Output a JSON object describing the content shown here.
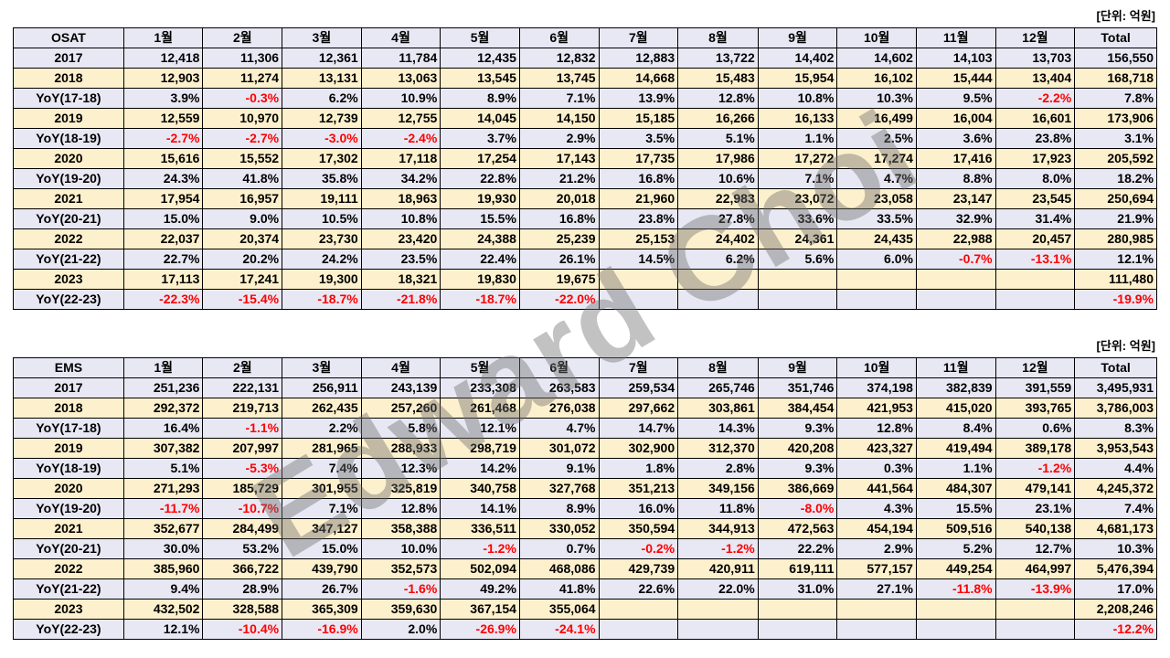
{
  "unit_label": "[단위: 억원]",
  "watermark": "Edward Choi",
  "tables": [
    {
      "header": [
        "OSAT",
        "1월",
        "2월",
        "3월",
        "4월",
        "5월",
        "6월",
        "7월",
        "8월",
        "9월",
        "10월",
        "11월",
        "12월",
        "Total"
      ],
      "rows": [
        {
          "label": "2017",
          "values": [
            "12,418",
            "11,306",
            "12,361",
            "11,784",
            "12,435",
            "12,832",
            "12,883",
            "13,722",
            "14,402",
            "14,602",
            "14,103",
            "13,703",
            "156,550"
          ]
        },
        {
          "label": "2018",
          "values": [
            "12,903",
            "11,274",
            "13,131",
            "13,063",
            "13,545",
            "13,745",
            "14,668",
            "15,483",
            "15,954",
            "16,102",
            "15,444",
            "13,404",
            "168,718"
          ]
        },
        {
          "label": "YoY(17-18)",
          "values": [
            "3.9%",
            "-0.3%",
            "6.2%",
            "10.9%",
            "8.9%",
            "7.1%",
            "13.9%",
            "12.8%",
            "10.8%",
            "10.3%",
            "9.5%",
            "-2.2%",
            "7.8%"
          ]
        },
        {
          "label": "2019",
          "values": [
            "12,559",
            "10,970",
            "12,739",
            "12,755",
            "14,045",
            "14,150",
            "15,185",
            "16,266",
            "16,133",
            "16,499",
            "16,004",
            "16,601",
            "173,906"
          ]
        },
        {
          "label": "YoY(18-19)",
          "values": [
            "-2.7%",
            "-2.7%",
            "-3.0%",
            "-2.4%",
            "3.7%",
            "2.9%",
            "3.5%",
            "5.1%",
            "1.1%",
            "2.5%",
            "3.6%",
            "23.8%",
            "3.1%"
          ]
        },
        {
          "label": "2020",
          "values": [
            "15,616",
            "15,552",
            "17,302",
            "17,118",
            "17,254",
            "17,143",
            "17,735",
            "17,986",
            "17,272",
            "17,274",
            "17,416",
            "17,923",
            "205,592"
          ]
        },
        {
          "label": "YoY(19-20)",
          "values": [
            "24.3%",
            "41.8%",
            "35.8%",
            "34.2%",
            "22.8%",
            "21.2%",
            "16.8%",
            "10.6%",
            "7.1%",
            "4.7%",
            "8.8%",
            "8.0%",
            "18.2%"
          ]
        },
        {
          "label": "2021",
          "values": [
            "17,954",
            "16,957",
            "19,111",
            "18,963",
            "19,930",
            "20,018",
            "21,960",
            "22,983",
            "23,072",
            "23,058",
            "23,147",
            "23,545",
            "250,694"
          ]
        },
        {
          "label": "YoY(20-21)",
          "values": [
            "15.0%",
            "9.0%",
            "10.5%",
            "10.8%",
            "15.5%",
            "16.8%",
            "23.8%",
            "27.8%",
            "33.6%",
            "33.5%",
            "32.9%",
            "31.4%",
            "21.9%"
          ]
        },
        {
          "label": "2022",
          "values": [
            "22,037",
            "20,374",
            "23,730",
            "23,420",
            "24,388",
            "25,239",
            "25,153",
            "24,402",
            "24,361",
            "24,435",
            "22,988",
            "20,457",
            "280,985"
          ]
        },
        {
          "label": "YoY(21-22)",
          "values": [
            "22.7%",
            "20.2%",
            "24.2%",
            "23.5%",
            "22.4%",
            "26.1%",
            "14.5%",
            "6.2%",
            "5.6%",
            "6.0%",
            "-0.7%",
            "-13.1%",
            "12.1%"
          ]
        },
        {
          "label": "2023",
          "values": [
            "17,113",
            "17,241",
            "19,300",
            "18,321",
            "19,830",
            "19,675",
            "",
            "",
            "",
            "",
            "",
            "",
            "111,480"
          ]
        },
        {
          "label": "YoY(22-23)",
          "values": [
            "-22.3%",
            "-15.4%",
            "-18.7%",
            "-21.8%",
            "-18.7%",
            "-22.0%",
            "",
            "",
            "",
            "",
            "",
            "",
            "-19.9%"
          ]
        }
      ]
    },
    {
      "header": [
        "EMS",
        "1월",
        "2월",
        "3월",
        "4월",
        "5월",
        "6월",
        "7월",
        "8월",
        "9월",
        "10월",
        "11월",
        "12월",
        "Total"
      ],
      "rows": [
        {
          "label": "2017",
          "values": [
            "251,236",
            "222,131",
            "256,911",
            "243,139",
            "233,308",
            "263,583",
            "259,534",
            "265,746",
            "351,746",
            "374,198",
            "382,839",
            "391,559",
            "3,495,931"
          ]
        },
        {
          "label": "2018",
          "values": [
            "292,372",
            "219,713",
            "262,435",
            "257,260",
            "261,468",
            "276,038",
            "297,662",
            "303,861",
            "384,454",
            "421,953",
            "415,020",
            "393,765",
            "3,786,003"
          ]
        },
        {
          "label": "YoY(17-18)",
          "values": [
            "16.4%",
            "-1.1%",
            "2.2%",
            "5.8%",
            "12.1%",
            "4.7%",
            "14.7%",
            "14.3%",
            "9.3%",
            "12.8%",
            "8.4%",
            "0.6%",
            "8.3%"
          ]
        },
        {
          "label": "2019",
          "values": [
            "307,382",
            "207,997",
            "281,965",
            "288,933",
            "298,719",
            "301,072",
            "302,900",
            "312,370",
            "420,208",
            "423,327",
            "419,494",
            "389,178",
            "3,953,543"
          ]
        },
        {
          "label": "YoY(18-19)",
          "values": [
            "5.1%",
            "-5.3%",
            "7.4%",
            "12.3%",
            "14.2%",
            "9.1%",
            "1.8%",
            "2.8%",
            "9.3%",
            "0.3%",
            "1.1%",
            "-1.2%",
            "4.4%"
          ]
        },
        {
          "label": "2020",
          "values": [
            "271,293",
            "185,729",
            "301,955",
            "325,819",
            "340,758",
            "327,768",
            "351,213",
            "349,156",
            "386,669",
            "441,564",
            "484,307",
            "479,141",
            "4,245,372"
          ]
        },
        {
          "label": "YoY(19-20)",
          "values": [
            "-11.7%",
            "-10.7%",
            "7.1%",
            "12.8%",
            "14.1%",
            "8.9%",
            "16.0%",
            "11.8%",
            "-8.0%",
            "4.3%",
            "15.5%",
            "23.1%",
            "7.4%"
          ]
        },
        {
          "label": "2021",
          "values": [
            "352,677",
            "284,499",
            "347,127",
            "358,388",
            "336,511",
            "330,052",
            "350,594",
            "344,913",
            "472,563",
            "454,194",
            "509,516",
            "540,138",
            "4,681,173"
          ]
        },
        {
          "label": "YoY(20-21)",
          "values": [
            "30.0%",
            "53.2%",
            "15.0%",
            "10.0%",
            "-1.2%",
            "0.7%",
            "-0.2%",
            "-1.2%",
            "22.2%",
            "2.9%",
            "5.2%",
            "12.7%",
            "10.3%"
          ]
        },
        {
          "label": "2022",
          "values": [
            "385,960",
            "366,722",
            "439,790",
            "352,573",
            "502,094",
            "468,086",
            "429,739",
            "420,911",
            "619,111",
            "577,157",
            "449,254",
            "464,997",
            "5,476,394"
          ]
        },
        {
          "label": "YoY(21-22)",
          "values": [
            "9.4%",
            "28.9%",
            "26.7%",
            "-1.6%",
            "49.2%",
            "41.8%",
            "22.6%",
            "22.0%",
            "31.0%",
            "27.1%",
            "-11.8%",
            "-13.9%",
            "17.0%"
          ]
        },
        {
          "label": "2023",
          "values": [
            "432,502",
            "328,588",
            "365,309",
            "359,630",
            "367,154",
            "355,064",
            "",
            "",
            "",
            "",
            "",
            "",
            "2,208,246"
          ]
        },
        {
          "label": "YoY(22-23)",
          "values": [
            "12.1%",
            "-10.4%",
            "-16.9%",
            "2.0%",
            "-26.9%",
            "-24.1%",
            "",
            "",
            "",
            "",
            "",
            "",
            "-12.2%"
          ]
        }
      ]
    }
  ]
}
